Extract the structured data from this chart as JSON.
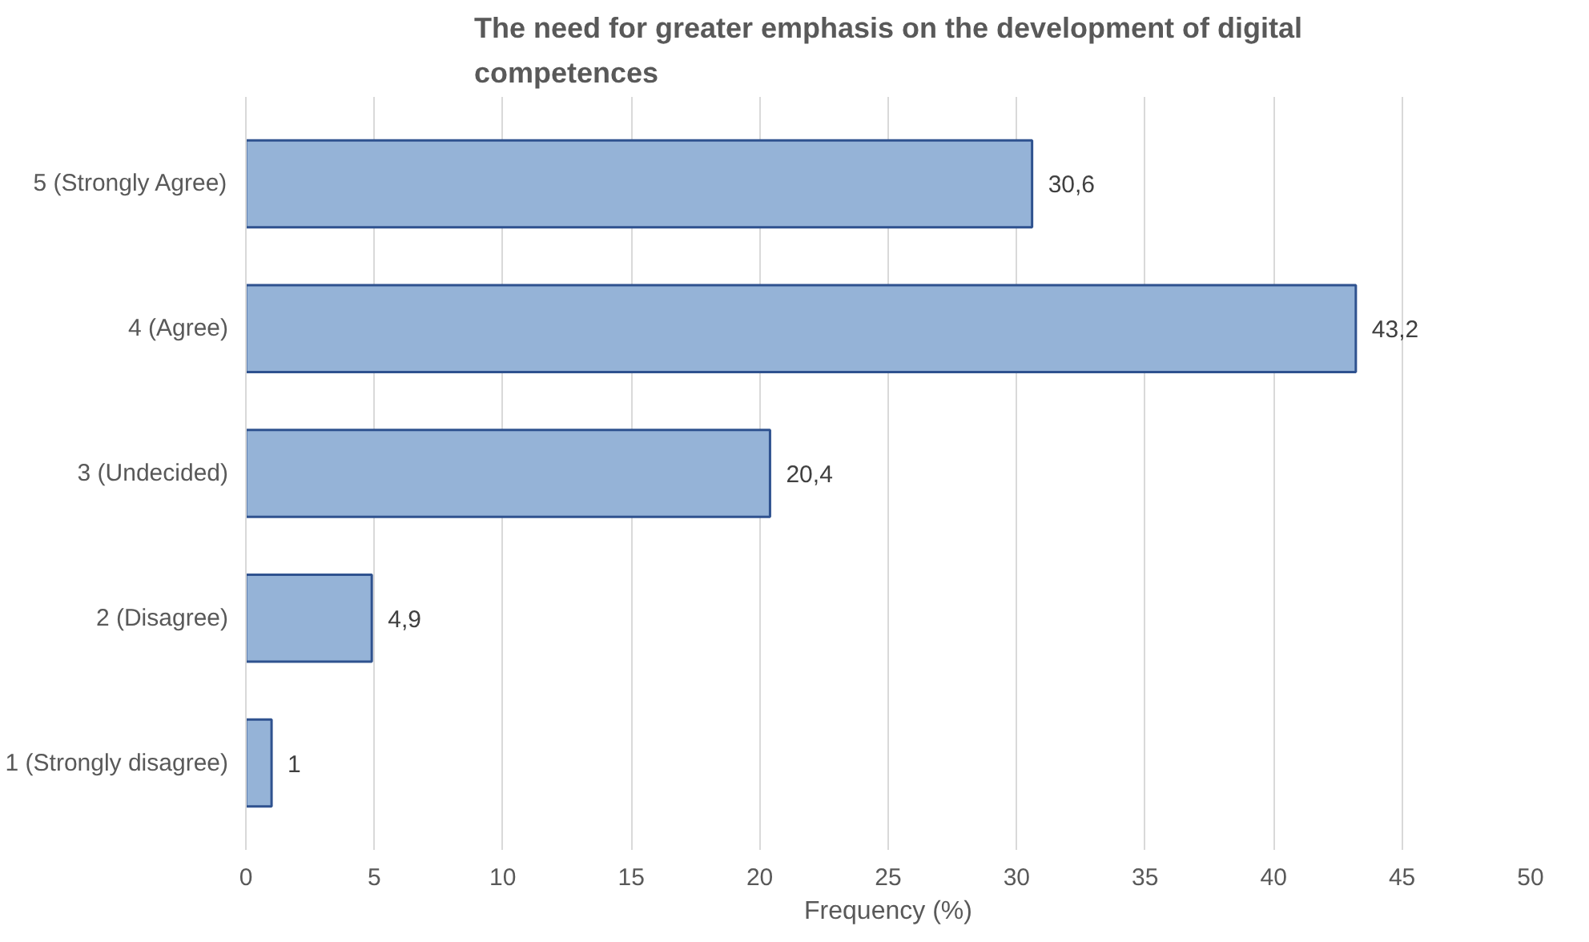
{
  "chart_data": {
    "type": "bar",
    "orientation": "horizontal",
    "title": "The need for greater emphasis on the development of digital competences",
    "xlabel": "Frequency (%)",
    "categories": [
      "5 (Strongly Agree)",
      "4 (Agree)",
      "3 (Undecided)",
      "2 (Disagree)",
      "1 (Strongly disagree)"
    ],
    "values": [
      30.6,
      43.2,
      20.4,
      4.9,
      1
    ],
    "value_labels": [
      "30,6",
      "43,2",
      "20,4",
      "4,9",
      "1"
    ],
    "color": "#95b3d7",
    "xlim": [
      0,
      50
    ],
    "xticks": [
      0,
      5,
      10,
      15,
      20,
      25,
      30,
      35,
      40,
      45,
      50
    ],
    "grid": "x"
  }
}
